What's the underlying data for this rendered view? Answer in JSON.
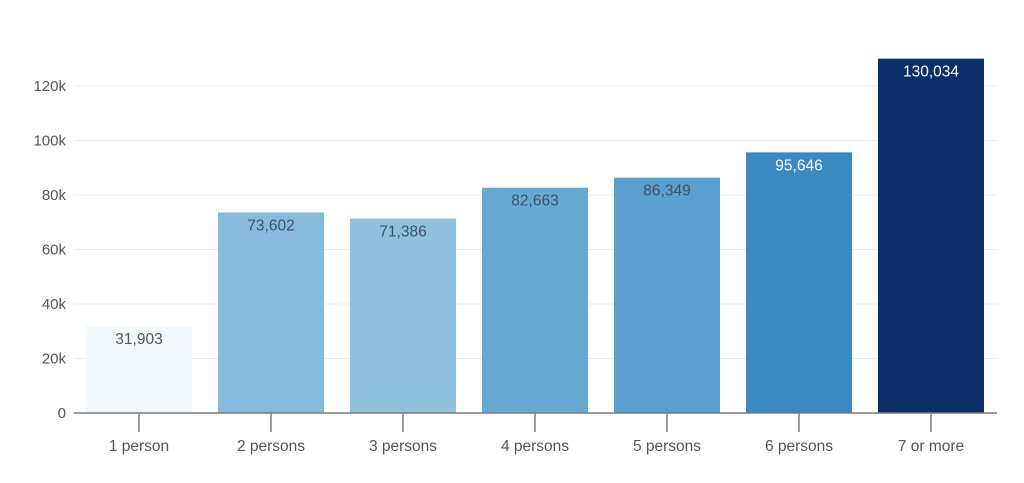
{
  "chart_data": {
    "type": "bar",
    "title": "",
    "xlabel": "",
    "ylabel": "",
    "categories": [
      "1 person",
      "2 persons",
      "3 persons",
      "4 persons",
      "5 persons",
      "6 persons",
      "7 or more"
    ],
    "values": [
      31903,
      73602,
      71386,
      82663,
      86349,
      95646,
      130034
    ],
    "value_labels": [
      "31,903",
      "73,602",
      "71,386",
      "82,663",
      "86,349",
      "95,646",
      "130,034"
    ],
    "bar_colors": [
      "#f3f8fd",
      "#86bbdb",
      "#91c2dd",
      "#66aad4",
      "#5b9fd0",
      "#3b89c3",
      "#0b2e69"
    ],
    "label_colors": [
      "#555555",
      "#3d5266",
      "#3d5266",
      "#3d5266",
      "#3d5266",
      "#ffffff",
      "#ffffff"
    ],
    "ylim": [
      0,
      130034
    ],
    "yticks": [
      0,
      20000,
      40000,
      60000,
      80000,
      100000,
      120000
    ],
    "ytick_labels": [
      "0",
      "20k",
      "40k",
      "60k",
      "80k",
      "100k",
      "120k"
    ],
    "grid": true,
    "legend": null
  }
}
